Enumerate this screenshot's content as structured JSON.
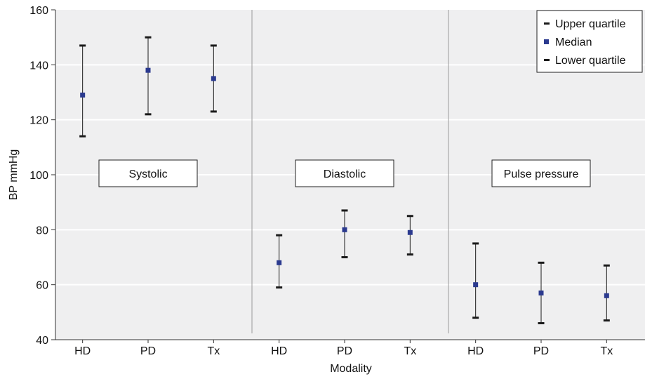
{
  "chart_data": {
    "type": "scatter",
    "xlabel": "Modality",
    "ylabel": "BP mmHg",
    "ylim": [
      40,
      160
    ],
    "yticks": [
      40,
      60,
      80,
      100,
      120,
      140,
      160
    ],
    "grid": true,
    "legend_position": "top-right",
    "legend": {
      "upper": "Upper quartile",
      "median": "Median",
      "lower": "Lower quartile"
    },
    "categories": [
      "HD",
      "PD",
      "Tx",
      "HD",
      "PD",
      "Tx",
      "HD",
      "PD",
      "Tx"
    ],
    "panels": [
      {
        "label": "Systolic",
        "points": [
          {
            "category": "HD",
            "upper": 147,
            "median": 129,
            "lower": 114
          },
          {
            "category": "PD",
            "upper": 150,
            "median": 138,
            "lower": 122
          },
          {
            "category": "Tx",
            "upper": 147,
            "median": 135,
            "lower": 123
          }
        ]
      },
      {
        "label": "Diastolic",
        "points": [
          {
            "category": "HD",
            "upper": 78,
            "median": 68,
            "lower": 59
          },
          {
            "category": "PD",
            "upper": 87,
            "median": 80,
            "lower": 70
          },
          {
            "category": "Tx",
            "upper": 85,
            "median": 79,
            "lower": 71
          }
        ]
      },
      {
        "label": "Pulse pressure",
        "points": [
          {
            "category": "HD",
            "upper": 75,
            "median": 60,
            "lower": 48
          },
          {
            "category": "PD",
            "upper": 68,
            "median": 57,
            "lower": 46
          },
          {
            "category": "Tx",
            "upper": 67,
            "median": 56,
            "lower": 47
          }
        ]
      }
    ],
    "colors": {
      "plot_background": "#efeff0",
      "gridline": "#ffffff",
      "divider": "#9a9a9a",
      "median_marker": "#2b3a8f",
      "whisker": "#1a1a1a"
    }
  }
}
